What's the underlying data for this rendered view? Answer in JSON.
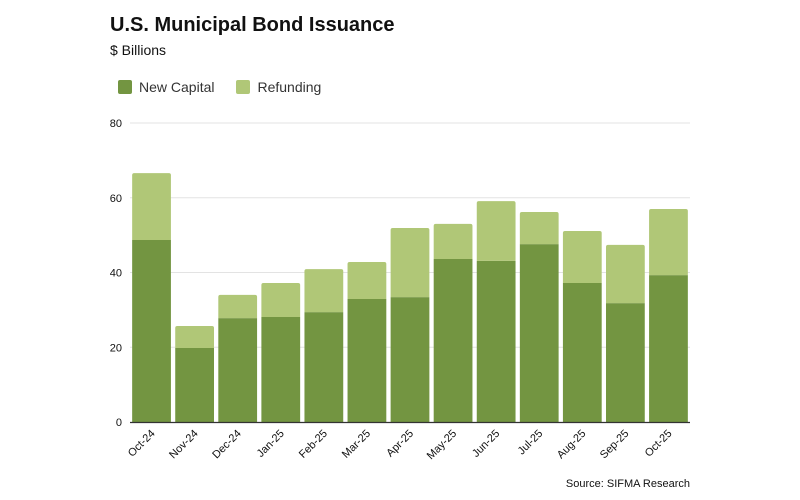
{
  "chart_data": {
    "type": "bar",
    "stacked": true,
    "title": "U.S. Municipal Bond Issuance",
    "subtitle": "$ Billions",
    "source": "Source: SIFMA Research",
    "categories": [
      "Oct-24",
      "Nov-24",
      "Dec-24",
      "Jan-25",
      "Feb-25",
      "Mar-25",
      "Apr-25",
      "May-25",
      "Jun-25",
      "Jul-25",
      "Aug-25",
      "Sep-25",
      "Oct-25"
    ],
    "series": [
      {
        "name": "New Capital",
        "color": "#739541",
        "values": [
          48.7,
          19.8,
          27.8,
          28.1,
          29.4,
          32.9,
          33.4,
          43.6,
          43.1,
          47.6,
          37.2,
          31.8,
          39.3
        ]
      },
      {
        "name": "Refunding",
        "color": "#b0c777",
        "values": [
          17.9,
          5.9,
          6.2,
          9.1,
          11.5,
          9.9,
          18.5,
          9.4,
          16.0,
          8.6,
          13.9,
          15.6,
          17.7
        ]
      }
    ],
    "ylim": [
      0,
      80
    ],
    "yticks": [
      0,
      20,
      40,
      60,
      80
    ],
    "grid": true,
    "legend": "top-left"
  }
}
